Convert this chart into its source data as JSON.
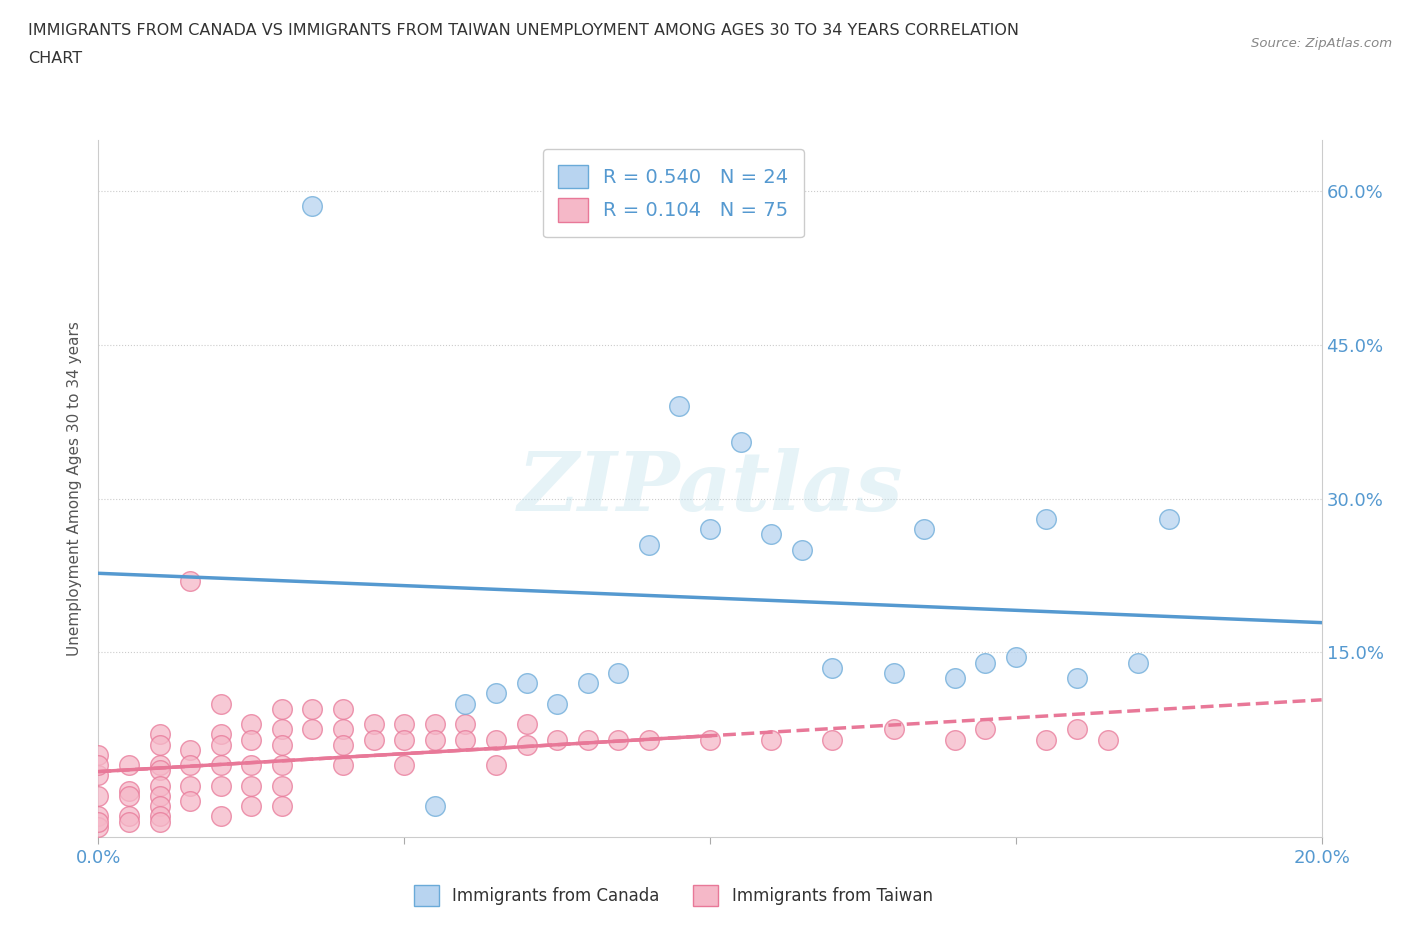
{
  "title_line1": "IMMIGRANTS FROM CANADA VS IMMIGRANTS FROM TAIWAN UNEMPLOYMENT AMONG AGES 30 TO 34 YEARS CORRELATION",
  "title_line2": "CHART",
  "source_text": "Source: ZipAtlas.com",
  "ylabel": "Unemployment Among Ages 30 to 34 years",
  "xlim": [
    0.0,
    0.2
  ],
  "ylim": [
    -0.03,
    0.65
  ],
  "yticks": [
    0.0,
    0.15,
    0.3,
    0.45,
    0.6
  ],
  "ytick_labels_right": [
    "",
    "15.0%",
    "30.0%",
    "45.0%",
    "60.0%"
  ],
  "xticks": [
    0.0,
    0.05,
    0.1,
    0.15,
    0.2
  ],
  "xtick_labels": [
    "0.0%",
    "",
    "",
    "",
    "20.0%"
  ],
  "canada_color": "#b8d4f0",
  "taiwan_color": "#f5b8c8",
  "canada_edge_color": "#6aaad8",
  "taiwan_edge_color": "#e87898",
  "canada_line_color": "#5599d0",
  "taiwan_line_color": "#e87898",
  "background_color": "#ffffff",
  "grid_color": "#cccccc",
  "watermark": "ZIPatlas",
  "R_canada": 0.54,
  "N_canada": 24,
  "R_taiwan": 0.104,
  "N_taiwan": 75,
  "canada_x": [
    0.035,
    0.055,
    0.06,
    0.065,
    0.07,
    0.075,
    0.08,
    0.085,
    0.09,
    0.095,
    0.1,
    0.105,
    0.11,
    0.115,
    0.12,
    0.13,
    0.135,
    0.14,
    0.145,
    0.15,
    0.155,
    0.16,
    0.17,
    0.175
  ],
  "canada_y": [
    0.585,
    0.0,
    0.1,
    0.11,
    0.12,
    0.1,
    0.12,
    0.13,
    0.255,
    0.39,
    0.27,
    0.355,
    0.265,
    0.25,
    0.135,
    0.13,
    0.27,
    0.125,
    0.14,
    0.145,
    0.28,
    0.125,
    0.14,
    0.28
  ],
  "taiwan_x": [
    0.0,
    0.0,
    0.0,
    0.0,
    0.0,
    0.0,
    0.0,
    0.005,
    0.005,
    0.005,
    0.005,
    0.005,
    0.01,
    0.01,
    0.01,
    0.01,
    0.01,
    0.01,
    0.01,
    0.01,
    0.01,
    0.015,
    0.015,
    0.015,
    0.015,
    0.015,
    0.02,
    0.02,
    0.02,
    0.02,
    0.02,
    0.02,
    0.025,
    0.025,
    0.025,
    0.025,
    0.025,
    0.03,
    0.03,
    0.03,
    0.03,
    0.03,
    0.03,
    0.035,
    0.035,
    0.04,
    0.04,
    0.04,
    0.04,
    0.045,
    0.045,
    0.05,
    0.05,
    0.05,
    0.055,
    0.055,
    0.06,
    0.06,
    0.065,
    0.065,
    0.07,
    0.07,
    0.075,
    0.08,
    0.085,
    0.09,
    0.1,
    0.11,
    0.12,
    0.13,
    0.14,
    0.145,
    0.155,
    0.16,
    0.165
  ],
  "taiwan_y": [
    0.05,
    0.03,
    0.01,
    -0.01,
    -0.02,
    -0.015,
    0.04,
    0.04,
    0.015,
    0.01,
    -0.01,
    -0.015,
    0.07,
    0.06,
    0.04,
    0.035,
    0.02,
    0.01,
    0.0,
    -0.01,
    -0.015,
    0.22,
    0.055,
    0.04,
    0.02,
    0.005,
    0.1,
    0.07,
    0.06,
    0.04,
    0.02,
    -0.01,
    0.08,
    0.065,
    0.04,
    0.02,
    0.0,
    0.095,
    0.075,
    0.06,
    0.04,
    0.02,
    0.0,
    0.095,
    0.075,
    0.095,
    0.075,
    0.06,
    0.04,
    0.08,
    0.065,
    0.08,
    0.065,
    0.04,
    0.08,
    0.065,
    0.08,
    0.065,
    0.065,
    0.04,
    0.08,
    0.06,
    0.065,
    0.065,
    0.065,
    0.065,
    0.065,
    0.065,
    0.065,
    0.075,
    0.065,
    0.075,
    0.065,
    0.075,
    0.065
  ]
}
